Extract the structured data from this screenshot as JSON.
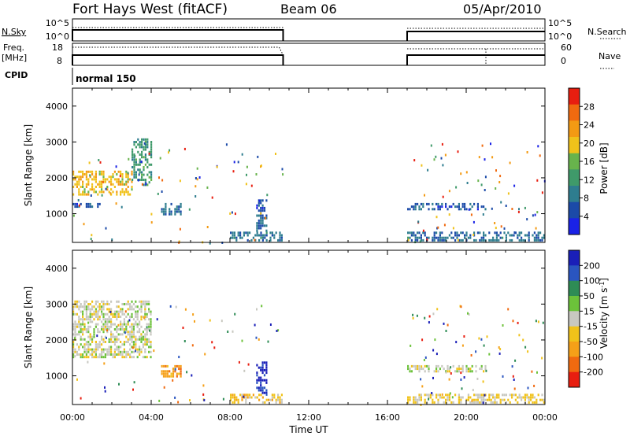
{
  "header": {
    "station": "Fort Hays West (fitACF)",
    "beam": "Beam 06",
    "date": "05/Apr/2010"
  },
  "top_panels": {
    "nsky_label": "N.Sky",
    "nsky_ticks": [
      "10^5",
      "10^0"
    ],
    "nsearch_label": "N.Search",
    "nsearch_ticks": [
      "10^5",
      "10^0"
    ],
    "freq_label": "Freq.",
    "freq_unit": "[MHz]",
    "freq_ticks": [
      "18",
      "8"
    ],
    "nave_label": "Nave",
    "nave_ticks": [
      "60",
      "0"
    ],
    "cpid_label": "CPID",
    "cpid_value": "normal 150"
  },
  "colors": {
    "power_scale": [
      "#1a22e6",
      "#1b4aa8",
      "#2e7d8f",
      "#3f9a6a",
      "#68b34c",
      "#f0c21a",
      "#f39a13",
      "#f06a10",
      "#e81e10"
    ],
    "velocity_scale": [
      "#1a1fb8",
      "#2a55c0",
      "#2e8c55",
      "#6cc23a",
      "#c8c8c0",
      "#f0c21a",
      "#f5a018",
      "#f06a10",
      "#e81e10"
    ]
  },
  "chart_data": [
    {
      "type": "heatmap",
      "panel": "power",
      "ylabel": "Slant Range [km]",
      "ylim": [
        200,
        4500
      ],
      "yticks": [
        "1000",
        "2000",
        "3000",
        "4000"
      ],
      "xlim": [
        "00:00",
        "24:00"
      ],
      "colorbar": {
        "label": "Power [dB]",
        "ticks": [
          "4",
          "8",
          "12",
          "16",
          "20",
          "24",
          "28"
        ],
        "range": [
          0,
          32
        ]
      },
      "regions": [
        {
          "start": "00:00",
          "end": "03:00",
          "range_km": [
            1550,
            2200
          ],
          "value_db": 20
        },
        {
          "start": "03:00",
          "end": "04:00",
          "range_km": [
            1800,
            3100
          ],
          "value_db": 12
        },
        {
          "start": "00:00",
          "end": "01:30",
          "range_km": [
            1200,
            1300
          ],
          "value_db": 6
        },
        {
          "start": "04:30",
          "end": "05:30",
          "range_km": [
            1000,
            1300
          ],
          "value_db": 8
        },
        {
          "start": "08:00",
          "end": "10:40",
          "range_km": [
            250,
            500
          ],
          "value_db": 8
        },
        {
          "start": "09:20",
          "end": "09:50",
          "range_km": [
            500,
            1400
          ],
          "value_db": 6
        },
        {
          "start": "17:00",
          "end": "21:00",
          "range_km": [
            1150,
            1300
          ],
          "value_db": 6
        },
        {
          "start": "17:00",
          "end": "24:00",
          "range_km": [
            250,
            500
          ],
          "value_db": 8
        }
      ]
    },
    {
      "type": "heatmap",
      "panel": "velocity",
      "ylabel": "Slant Range [km]",
      "ylim": [
        200,
        4500
      ],
      "yticks": [
        "1000",
        "2000",
        "3000",
        "4000"
      ],
      "xlim": [
        "00:00",
        "24:00"
      ],
      "xticks": [
        "00:00",
        "04:00",
        "08:00",
        "12:00",
        "16:00",
        "20:00",
        "00:00"
      ],
      "xlabel": "Time UT",
      "colorbar": {
        "label": "Velocity [m s^-1]",
        "ticks": [
          "200",
          "100",
          "50",
          "15",
          "-15",
          "-50",
          "-100",
          "-200"
        ],
        "range": [
          -250,
          250
        ]
      },
      "regions": [
        {
          "start": "00:00",
          "end": "04:00",
          "range_km": [
            1550,
            3100
          ],
          "value_ms": 0
        },
        {
          "start": "04:30",
          "end": "05:30",
          "range_km": [
            1000,
            1300
          ],
          "value_ms": -120
        },
        {
          "start": "08:00",
          "end": "10:40",
          "range_km": [
            250,
            500
          ],
          "value_ms": -60
        },
        {
          "start": "09:20",
          "end": "09:50",
          "range_km": [
            500,
            1400
          ],
          "value_ms": 200
        },
        {
          "start": "17:00",
          "end": "21:00",
          "range_km": [
            1150,
            1300
          ],
          "value_ms": 0
        },
        {
          "start": "17:00",
          "end": "24:00",
          "range_km": [
            250,
            500
          ],
          "value_ms": -30
        }
      ]
    }
  ]
}
